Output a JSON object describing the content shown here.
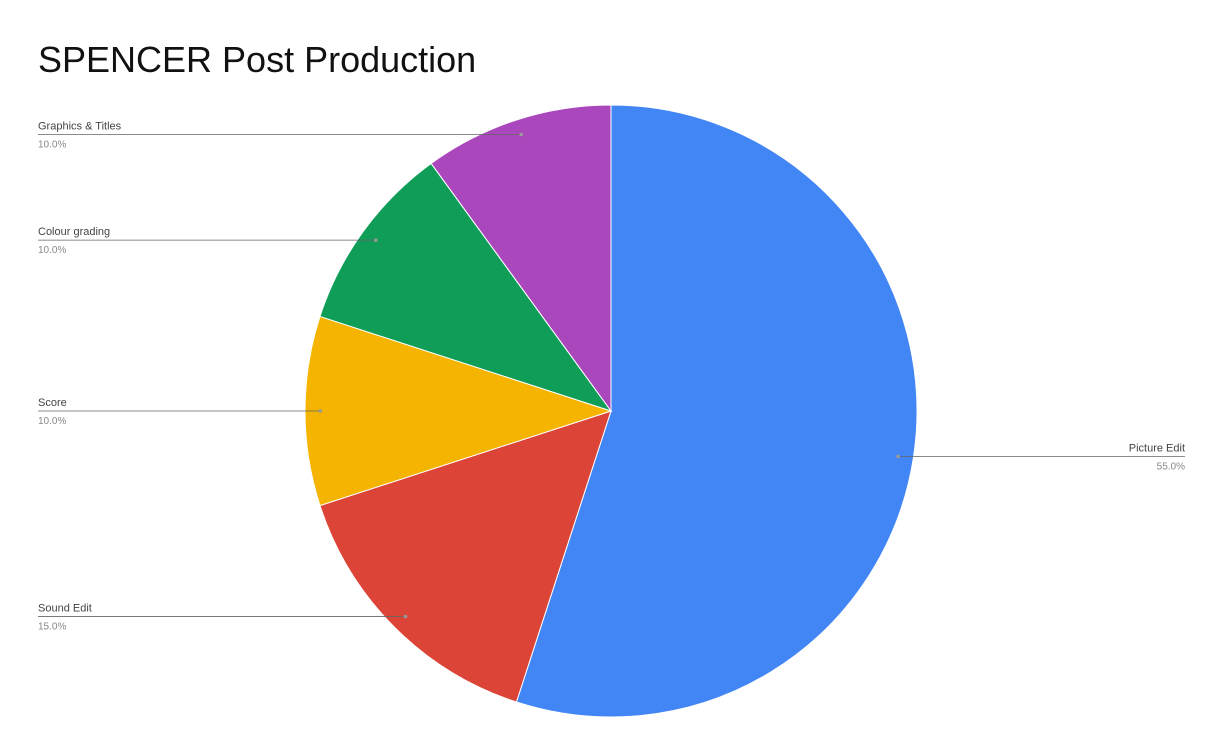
{
  "chart_data": {
    "type": "pie",
    "title": "SPENCER Post Production",
    "categories": [
      "Picture Edit",
      "Sound Edit",
      "Score",
      "Colour grading",
      "Graphics & Titles"
    ],
    "values": [
      55,
      15,
      10,
      10,
      10
    ],
    "value_labels": [
      "55.0%",
      "15.0%",
      "10.0%",
      "10.0%",
      "10.0%"
    ],
    "colors": [
      "#4285f4",
      "#db4437",
      "#f4b400",
      "#0f9d58",
      "#ab47bc"
    ]
  }
}
